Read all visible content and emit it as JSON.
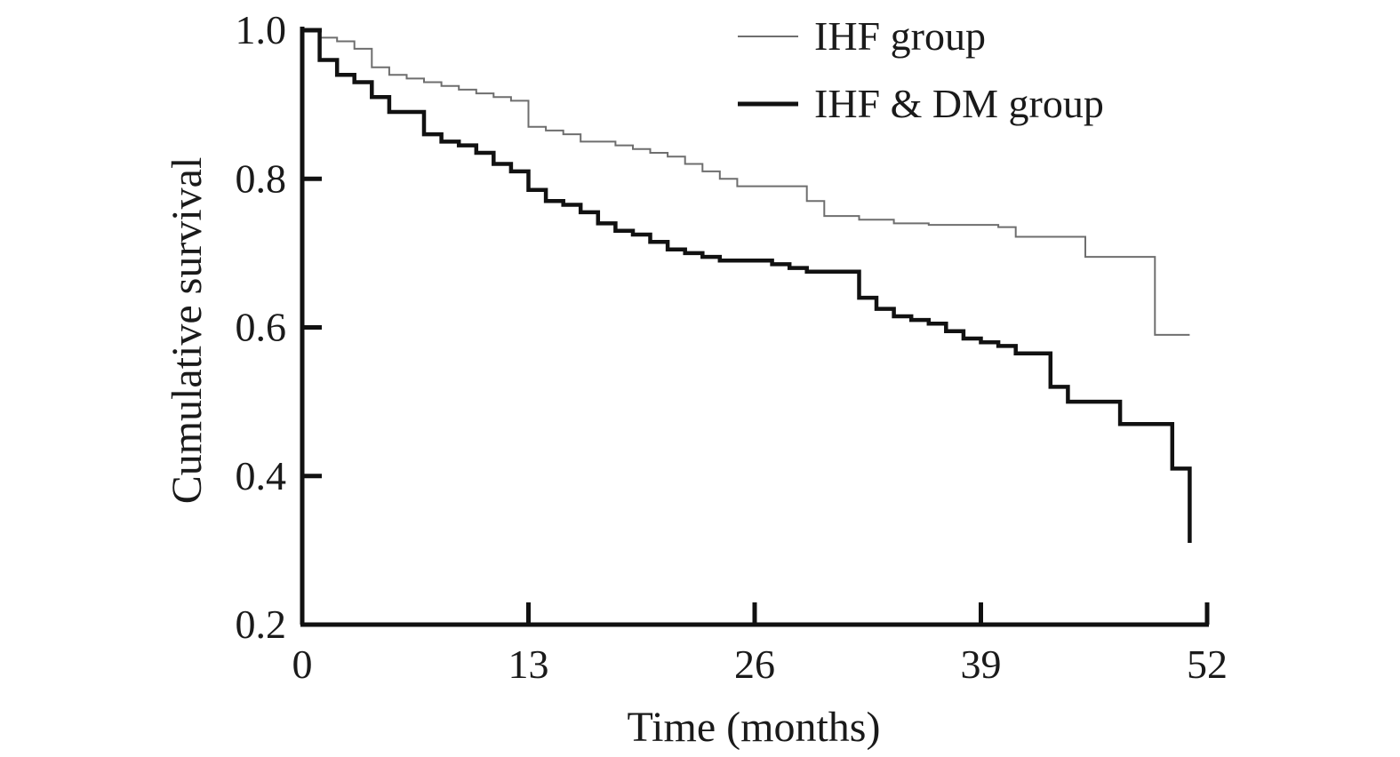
{
  "chart_data": {
    "type": "line",
    "step": true,
    "title": "",
    "xlabel": "Time (months)",
    "ylabel": "Cumulative survival",
    "xlim": [
      0,
      52
    ],
    "ylim": [
      0.2,
      1.0
    ],
    "xticks": [
      0,
      13,
      26,
      39,
      52
    ],
    "xtick_labels": [
      "0",
      "13",
      "26",
      "39",
      "52"
    ],
    "yticks": [
      0.2,
      0.4,
      0.6,
      0.8,
      1.0
    ],
    "ytick_labels": [
      "0.2",
      "0.4",
      "0.6",
      "0.8",
      "1.0"
    ],
    "grid": false,
    "legend_position": "top-right",
    "series": [
      {
        "name": "IHF group",
        "color": "#6e6e6e",
        "style": "thin",
        "x": [
          0,
          1,
          2,
          3,
          4,
          5,
          6,
          7,
          8,
          9,
          10,
          11,
          12,
          13,
          14,
          15,
          16,
          17,
          18,
          19,
          20,
          21,
          22,
          23,
          24,
          25,
          26,
          27,
          28,
          29,
          30,
          31,
          32,
          33,
          34,
          35,
          36,
          37,
          38,
          39,
          40,
          41,
          42,
          43,
          44,
          45,
          46,
          47,
          48,
          49,
          50,
          51
        ],
        "y": [
          1.0,
          0.99,
          0.985,
          0.975,
          0.95,
          0.94,
          0.935,
          0.93,
          0.925,
          0.92,
          0.915,
          0.91,
          0.905,
          0.87,
          0.865,
          0.86,
          0.85,
          0.85,
          0.845,
          0.84,
          0.835,
          0.83,
          0.82,
          0.81,
          0.8,
          0.79,
          0.79,
          0.79,
          0.79,
          0.77,
          0.75,
          0.75,
          0.745,
          0.745,
          0.74,
          0.74,
          0.738,
          0.738,
          0.738,
          0.738,
          0.735,
          0.722,
          0.722,
          0.722,
          0.722,
          0.695,
          0.695,
          0.695,
          0.695,
          0.59,
          0.59,
          0.59
        ]
      },
      {
        "name": "IHF & DM group",
        "color": "#111111",
        "style": "thick",
        "x": [
          0,
          1,
          2,
          3,
          4,
          5,
          6,
          7,
          8,
          9,
          10,
          11,
          12,
          13,
          14,
          15,
          16,
          17,
          18,
          19,
          20,
          21,
          22,
          23,
          24,
          25,
          26,
          27,
          28,
          29,
          30,
          31,
          32,
          33,
          34,
          35,
          36,
          37,
          38,
          39,
          40,
          41,
          42,
          43,
          44,
          45,
          46,
          47,
          48,
          49,
          50,
          50.5,
          51
        ],
        "y": [
          1.0,
          0.96,
          0.94,
          0.93,
          0.91,
          0.89,
          0.89,
          0.86,
          0.85,
          0.845,
          0.835,
          0.82,
          0.81,
          0.785,
          0.77,
          0.765,
          0.755,
          0.74,
          0.73,
          0.725,
          0.715,
          0.705,
          0.7,
          0.695,
          0.69,
          0.69,
          0.69,
          0.685,
          0.68,
          0.675,
          0.675,
          0.675,
          0.64,
          0.625,
          0.615,
          0.61,
          0.605,
          0.595,
          0.585,
          0.58,
          0.575,
          0.565,
          0.565,
          0.52,
          0.5,
          0.5,
          0.5,
          0.47,
          0.47,
          0.47,
          0.41,
          0.41,
          0.31
        ]
      }
    ]
  }
}
